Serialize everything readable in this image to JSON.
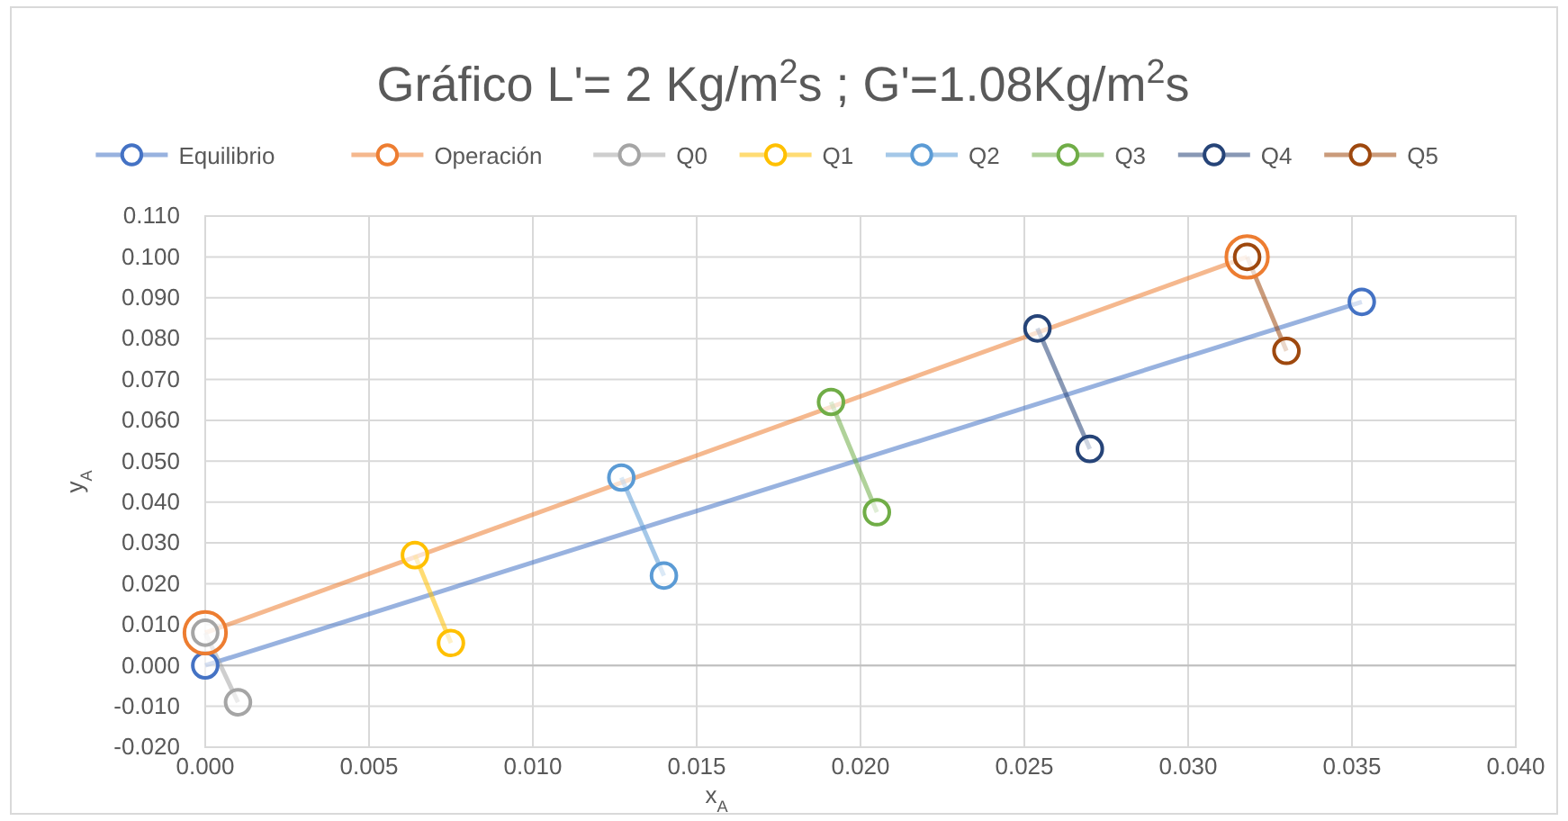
{
  "chart_data": {
    "type": "line",
    "title": "Gráfico L'= 2 Kg/m$^{2}$s ; G'=1.08Kg/m$^{2}$s",
    "xlabel": "x$_{A}$",
    "ylabel": "y$_{A}$",
    "xlim": [
      0,
      0.04
    ],
    "xticks": [
      {
        "value": 0,
        "label": "0.000"
      },
      {
        "value": 0.005,
        "label": "0.005"
      },
      {
        "value": 0.01,
        "label": "0.010"
      },
      {
        "value": 0.015,
        "label": "0.015"
      },
      {
        "value": 0.02,
        "label": "0.020"
      },
      {
        "value": 0.025,
        "label": "0.025"
      },
      {
        "value": 0.03,
        "label": "0.030"
      },
      {
        "value": 0.035,
        "label": "0.035"
      },
      {
        "value": 0.04,
        "label": "0.040"
      }
    ],
    "ylim": [
      -0.02,
      0.11
    ],
    "yticks": [
      {
        "value": -0.02,
        "label": "-0.020"
      },
      {
        "value": -0.01,
        "label": "-0.010"
      },
      {
        "value": 0,
        "label": "0.000"
      },
      {
        "value": 0.01,
        "label": "0.010"
      },
      {
        "value": 0.02,
        "label": "0.020"
      },
      {
        "value": 0.03,
        "label": "0.030"
      },
      {
        "value": 0.04,
        "label": "0.040"
      },
      {
        "value": 0.05,
        "label": "0.050"
      },
      {
        "value": 0.06,
        "label": "0.060"
      },
      {
        "value": 0.07,
        "label": "0.070"
      },
      {
        "value": 0.08,
        "label": "0.080"
      },
      {
        "value": 0.09,
        "label": "0.090"
      },
      {
        "value": 0.1,
        "label": "0.100"
      },
      {
        "value": 0.11,
        "label": "0.110"
      }
    ],
    "grid": true,
    "legend": "top",
    "marker": "circle",
    "line_style": "solid",
    "series": [
      {
        "name": "Equilibrio",
        "color": "#4472c4",
        "x": [
          0,
          0.0353
        ],
        "values": [
          0,
          0.089
        ]
      },
      {
        "name": "Operación",
        "color": "#ed7d31",
        "x": [
          0,
          0.0318
        ],
        "values": [
          0.008,
          0.1
        ]
      },
      {
        "name": "Q0",
        "color": "#a5a5a5",
        "x": [
          0,
          0.001
        ],
        "values": [
          0.008,
          -0.009
        ]
      },
      {
        "name": "Q1",
        "color": "#ffc000",
        "x": [
          0.0064,
          0.0075
        ],
        "values": [
          0.027,
          0.0055
        ]
      },
      {
        "name": "Q2",
        "color": "#5b9bd5",
        "x": [
          0.0127,
          0.014
        ],
        "values": [
          0.046,
          0.022
        ]
      },
      {
        "name": "Q3",
        "color": "#70ad47",
        "x": [
          0.0191,
          0.0205
        ],
        "values": [
          0.0645,
          0.0375
        ]
      },
      {
        "name": "Q4",
        "color": "#264478",
        "x": [
          0.0254,
          0.027
        ],
        "values": [
          0.0825,
          0.053
        ]
      },
      {
        "name": "Q5",
        "color": "#9e480e",
        "x": [
          0.0318,
          0.033
        ],
        "values": [
          0.1,
          0.077
        ]
      }
    ]
  }
}
